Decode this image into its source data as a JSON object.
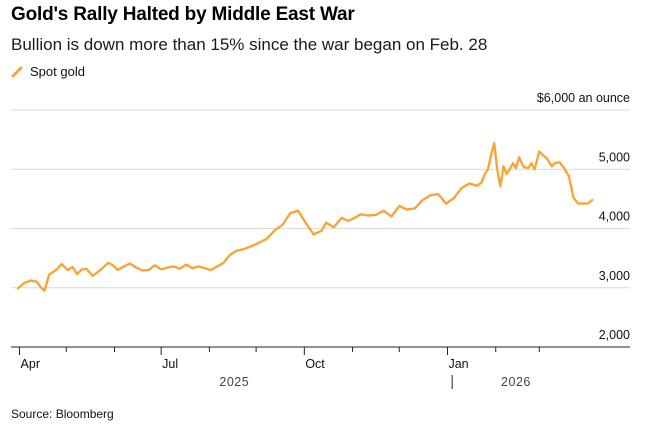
{
  "colors": {
    "series": "#f5a63a",
    "grid": "#d9d9d9",
    "axis": "#222222",
    "text": "#111111"
  },
  "legend_icon": "diagonal-line-icon",
  "source": "Source: Bloomberg",
  "chart_data": {
    "type": "line",
    "title": "Gold's Rally Halted by Middle East War",
    "subtitle": "Bullion is down more than 15% since the war began on Feb. 28",
    "ylabel": "$6,000 an ounce",
    "xlabel": "",
    "ylim": [
      2000,
      6000
    ],
    "xlim_days": [
      0,
      374
    ],
    "grid": true,
    "legend_position": "top-left",
    "y_ticks": [
      {
        "value": 5000,
        "label": "5,000"
      },
      {
        "value": 4000,
        "label": "4,000"
      },
      {
        "value": 3000,
        "label": "3,000"
      },
      {
        "value": 2000,
        "label": "2,000"
      }
    ],
    "x_ticks": [
      {
        "day": 1,
        "label": "Apr"
      },
      {
        "day": 92,
        "label": "Jul"
      },
      {
        "day": 184,
        "label": "Oct"
      },
      {
        "day": 276,
        "label": "Jan"
      }
    ],
    "x_minor_ticks": [
      31,
      62,
      123,
      153,
      215,
      245,
      307,
      335
    ],
    "year_labels": [
      {
        "day": 139,
        "label": "2025"
      },
      {
        "day": 320,
        "label": "2026"
      }
    ],
    "year_divider_day": 279,
    "series": [
      {
        "name": "Spot gold",
        "x": [
          0,
          4,
          8,
          12,
          15,
          17,
          20,
          25,
          28,
          32,
          35,
          38,
          41,
          44,
          48,
          52,
          55,
          58,
          61,
          64,
          68,
          72,
          76,
          80,
          84,
          88,
          92,
          96,
          100,
          104,
          108,
          112,
          116,
          120,
          124,
          128,
          132,
          136,
          140,
          145,
          150,
          155,
          160,
          165,
          170,
          175,
          180,
          185,
          190,
          195,
          198,
          201,
          203,
          205,
          208,
          212,
          215,
          220,
          225,
          230,
          235,
          240,
          245,
          250,
          255,
          260,
          265,
          270,
          272,
          275,
          280,
          285,
          290,
          295,
          298,
          300,
          302,
          304,
          306,
          308,
          310,
          312,
          314,
          316,
          318,
          320,
          322,
          325,
          328,
          330,
          332,
          335,
          338,
          340,
          343,
          345,
          348,
          351,
          354,
          357,
          360,
          363,
          366,
          369
        ],
        "values": [
          2990,
          3080,
          3120,
          3100,
          3000,
          2950,
          3220,
          3310,
          3400,
          3300,
          3350,
          3230,
          3310,
          3320,
          3200,
          3280,
          3350,
          3420,
          3380,
          3300,
          3360,
          3410,
          3340,
          3290,
          3300,
          3380,
          3310,
          3340,
          3360,
          3320,
          3390,
          3330,
          3360,
          3330,
          3300,
          3360,
          3420,
          3550,
          3620,
          3650,
          3700,
          3760,
          3830,
          3970,
          4060,
          4260,
          4300,
          4090,
          3900,
          3960,
          4100,
          4050,
          4020,
          4090,
          4180,
          4130,
          4160,
          4240,
          4220,
          4230,
          4300,
          4200,
          4380,
          4320,
          4340,
          4480,
          4560,
          4580,
          4520,
          4420,
          4510,
          4680,
          4760,
          4720,
          4780,
          4920,
          5000,
          5240,
          5440,
          4990,
          4710,
          5050,
          4920,
          5000,
          5100,
          5020,
          5200,
          5040,
          5020,
          5100,
          5000,
          5300,
          5220,
          5180,
          5050,
          5100,
          5120,
          5020,
          4880,
          4520,
          4420,
          4420,
          4420,
          4480
        ]
      }
    ]
  }
}
